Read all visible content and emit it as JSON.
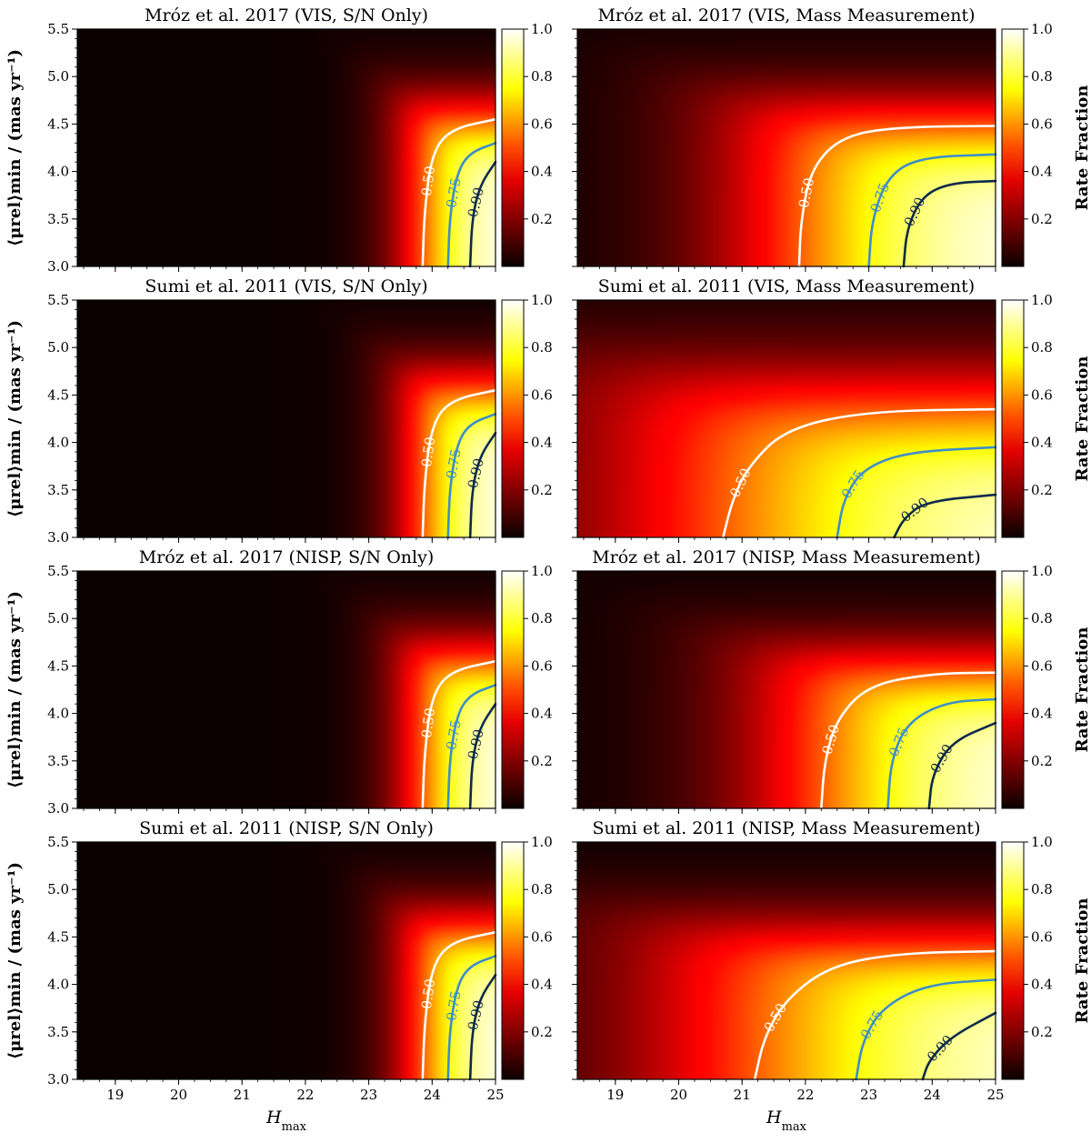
{
  "figure": {
    "xlabel_main": "H",
    "xlabel_sub": "max",
    "ylabel": "⟨μrel⟩min / (mas yr⁻¹)",
    "colorbar_label": "Rate Fraction",
    "colormap": "hot",
    "contour_colors": {
      "0.50": "#ffffff",
      "0.75": "#3d8ec9",
      "0.90": "#0d2a4d"
    }
  },
  "chart_data": [
    {
      "type": "heatmap",
      "title": "Mróz et al. 2017 (VIS, S/N Only)",
      "xlim": [
        18.4,
        25
      ],
      "ylim": [
        3.0,
        5.5
      ],
      "x_ticks": [
        "19",
        "20",
        "21",
        "22",
        "23",
        "24",
        "25"
      ],
      "y_ticks": [
        "3.0",
        "3.5",
        "4.0",
        "4.5",
        "5.0",
        "5.5"
      ],
      "colorbar_ticks": [
        "0.2",
        "0.4",
        "0.6",
        "0.8",
        "1.0"
      ],
      "contours": [
        {
          "level": 0.5,
          "label": "0.50",
          "points": [
            [
              23.85,
              3.0
            ],
            [
              23.88,
              3.6
            ],
            [
              24.0,
              4.2
            ],
            [
              24.3,
              4.45
            ],
            [
              25.0,
              4.55
            ]
          ]
        },
        {
          "level": 0.75,
          "label": "0.75",
          "points": [
            [
              24.25,
              3.0
            ],
            [
              24.28,
              3.55
            ],
            [
              24.4,
              4.0
            ],
            [
              24.6,
              4.2
            ],
            [
              25.0,
              4.3
            ]
          ]
        },
        {
          "level": 0.9,
          "label": "0.90",
          "points": [
            [
              24.6,
              3.0
            ],
            [
              24.63,
              3.5
            ],
            [
              24.75,
              3.85
            ],
            [
              25.0,
              4.1
            ]
          ]
        }
      ]
    },
    {
      "type": "heatmap",
      "title": "Mróz et al. 2017 (VIS, Mass Measurement)",
      "xlim": [
        18.4,
        25
      ],
      "ylim": [
        3.0,
        5.5
      ],
      "x_ticks": [
        "19",
        "20",
        "21",
        "22",
        "23",
        "24",
        "25"
      ],
      "y_ticks": [
        "3.0",
        "3.5",
        "4.0",
        "4.5",
        "5.0",
        "5.5"
      ],
      "colorbar_ticks": [
        "0.2",
        "0.4",
        "0.6",
        "0.8",
        "1.0"
      ],
      "contours": [
        {
          "level": 0.5,
          "label": "0.50",
          "points": [
            [
              21.9,
              3.0
            ],
            [
              21.93,
              3.5
            ],
            [
              22.1,
              4.05
            ],
            [
              22.6,
              4.38
            ],
            [
              23.5,
              4.47
            ],
            [
              25.0,
              4.48
            ]
          ]
        },
        {
          "level": 0.75,
          "label": "0.75",
          "points": [
            [
              23.0,
              3.0
            ],
            [
              23.05,
              3.5
            ],
            [
              23.3,
              3.95
            ],
            [
              23.8,
              4.15
            ],
            [
              25.0,
              4.18
            ]
          ]
        },
        {
          "level": 0.9,
          "label": "0.90",
          "points": [
            [
              23.55,
              3.0
            ],
            [
              23.6,
              3.4
            ],
            [
              23.85,
              3.75
            ],
            [
              24.3,
              3.88
            ],
            [
              25.0,
              3.9
            ]
          ]
        }
      ]
    },
    {
      "type": "heatmap",
      "title": "Sumi et al. 2011 (VIS, S/N Only)",
      "xlim": [
        18.4,
        25
      ],
      "ylim": [
        3.0,
        5.5
      ],
      "x_ticks": [
        "19",
        "20",
        "21",
        "22",
        "23",
        "24",
        "25"
      ],
      "y_ticks": [
        "3.0",
        "3.5",
        "4.0",
        "4.5",
        "5.0",
        "5.5"
      ],
      "colorbar_ticks": [
        "0.2",
        "0.4",
        "0.6",
        "0.8",
        "1.0"
      ],
      "contours": [
        {
          "level": 0.5,
          "label": "0.50",
          "points": [
            [
              23.85,
              3.0
            ],
            [
              23.88,
              3.6
            ],
            [
              24.0,
              4.2
            ],
            [
              24.3,
              4.45
            ],
            [
              25.0,
              4.55
            ]
          ]
        },
        {
          "level": 0.75,
          "label": "0.75",
          "points": [
            [
              24.25,
              3.0
            ],
            [
              24.28,
              3.55
            ],
            [
              24.4,
              4.0
            ],
            [
              24.6,
              4.2
            ],
            [
              25.0,
              4.3
            ]
          ]
        },
        {
          "level": 0.9,
          "label": "0.90",
          "points": [
            [
              24.6,
              3.0
            ],
            [
              24.63,
              3.5
            ],
            [
              24.75,
              3.85
            ],
            [
              25.0,
              4.1
            ]
          ]
        }
      ]
    },
    {
      "type": "heatmap",
      "title": "Sumi et al. 2011 (VIS, Mass Measurement)",
      "xlim": [
        18.4,
        25
      ],
      "ylim": [
        3.0,
        5.5
      ],
      "x_ticks": [
        "19",
        "20",
        "21",
        "22",
        "23",
        "24",
        "25"
      ],
      "y_ticks": [
        "3.0",
        "3.5",
        "4.0",
        "4.5",
        "5.0",
        "5.5"
      ],
      "colorbar_ticks": [
        "0.2",
        "0.4",
        "0.6",
        "0.8",
        "1.0"
      ],
      "contours": [
        {
          "level": 0.5,
          "label": "0.50",
          "points": [
            [
              20.7,
              3.0
            ],
            [
              20.85,
              3.4
            ],
            [
              21.1,
              3.75
            ],
            [
              21.7,
              4.15
            ],
            [
              23.0,
              4.33
            ],
            [
              25.0,
              4.35
            ]
          ]
        },
        {
          "level": 0.75,
          "label": "0.75",
          "points": [
            [
              22.5,
              3.0
            ],
            [
              22.6,
              3.4
            ],
            [
              22.9,
              3.72
            ],
            [
              23.6,
              3.9
            ],
            [
              25.0,
              3.95
            ]
          ]
        },
        {
          "level": 0.9,
          "label": "0.90",
          "points": [
            [
              23.4,
              3.0
            ],
            [
              23.55,
              3.2
            ],
            [
              23.9,
              3.38
            ],
            [
              25.0,
              3.45
            ]
          ]
        }
      ]
    },
    {
      "type": "heatmap",
      "title": "Mróz et al. 2017 (NISP, S/N Only)",
      "xlim": [
        18.4,
        25
      ],
      "ylim": [
        3.0,
        5.5
      ],
      "x_ticks": [
        "19",
        "20",
        "21",
        "22",
        "23",
        "24",
        "25"
      ],
      "y_ticks": [
        "3.0",
        "3.5",
        "4.0",
        "4.5",
        "5.0",
        "5.5"
      ],
      "colorbar_ticks": [
        "0.2",
        "0.4",
        "0.6",
        "0.8",
        "1.0"
      ],
      "contours": [
        {
          "level": 0.5,
          "label": "0.50",
          "points": [
            [
              23.85,
              3.0
            ],
            [
              23.88,
              3.6
            ],
            [
              24.0,
              4.2
            ],
            [
              24.3,
              4.45
            ],
            [
              25.0,
              4.55
            ]
          ]
        },
        {
          "level": 0.75,
          "label": "0.75",
          "points": [
            [
              24.25,
              3.0
            ],
            [
              24.28,
              3.55
            ],
            [
              24.4,
              4.0
            ],
            [
              24.6,
              4.2
            ],
            [
              25.0,
              4.3
            ]
          ]
        },
        {
          "level": 0.9,
          "label": "0.90",
          "points": [
            [
              24.6,
              3.0
            ],
            [
              24.63,
              3.5
            ],
            [
              24.75,
              3.85
            ],
            [
              25.0,
              4.1
            ]
          ]
        }
      ]
    },
    {
      "type": "heatmap",
      "title": "Mróz et al. 2017 (NISP, Mass Measurement)",
      "xlim": [
        18.4,
        25
      ],
      "ylim": [
        3.0,
        5.5
      ],
      "x_ticks": [
        "19",
        "20",
        "21",
        "22",
        "23",
        "24",
        "25"
      ],
      "y_ticks": [
        "3.0",
        "3.5",
        "4.0",
        "4.5",
        "5.0",
        "5.5"
      ],
      "colorbar_ticks": [
        "0.2",
        "0.4",
        "0.6",
        "0.8",
        "1.0"
      ],
      "contours": [
        {
          "level": 0.5,
          "label": "0.50",
          "points": [
            [
              22.25,
              3.0
            ],
            [
              22.3,
              3.5
            ],
            [
              22.5,
              3.95
            ],
            [
              23.0,
              4.3
            ],
            [
              24.0,
              4.42
            ],
            [
              25.0,
              4.43
            ]
          ]
        },
        {
          "level": 0.75,
          "label": "0.75",
          "points": [
            [
              23.3,
              3.0
            ],
            [
              23.35,
              3.5
            ],
            [
              23.6,
              3.9
            ],
            [
              24.2,
              4.12
            ],
            [
              25.0,
              4.15
            ]
          ]
        },
        {
          "level": 0.9,
          "label": "0.90",
          "points": [
            [
              23.95,
              3.0
            ],
            [
              24.0,
              3.35
            ],
            [
              24.3,
              3.7
            ],
            [
              25.0,
              3.9
            ]
          ]
        }
      ]
    },
    {
      "type": "heatmap",
      "title": "Sumi et al. 2011 (NISP, S/N Only)",
      "xlim": [
        18.4,
        25
      ],
      "ylim": [
        3.0,
        5.5
      ],
      "x_ticks": [
        "19",
        "20",
        "21",
        "22",
        "23",
        "24",
        "25"
      ],
      "y_ticks": [
        "3.0",
        "3.5",
        "4.0",
        "4.5",
        "5.0",
        "5.5"
      ],
      "colorbar_ticks": [
        "0.2",
        "0.4",
        "0.6",
        "0.8",
        "1.0"
      ],
      "contours": [
        {
          "level": 0.5,
          "label": "0.50",
          "points": [
            [
              23.85,
              3.0
            ],
            [
              23.88,
              3.6
            ],
            [
              24.0,
              4.2
            ],
            [
              24.3,
              4.45
            ],
            [
              25.0,
              4.55
            ]
          ]
        },
        {
          "level": 0.75,
          "label": "0.75",
          "points": [
            [
              24.25,
              3.0
            ],
            [
              24.28,
              3.55
            ],
            [
              24.4,
              4.0
            ],
            [
              24.6,
              4.2
            ],
            [
              25.0,
              4.3
            ]
          ]
        },
        {
          "level": 0.9,
          "label": "0.90",
          "points": [
            [
              24.6,
              3.0
            ],
            [
              24.63,
              3.5
            ],
            [
              24.75,
              3.85
            ],
            [
              25.0,
              4.1
            ]
          ]
        }
      ]
    },
    {
      "type": "heatmap",
      "title": "Sumi et al. 2011 (NISP, Mass Measurement)",
      "xlim": [
        18.4,
        25
      ],
      "ylim": [
        3.0,
        5.5
      ],
      "x_ticks": [
        "19",
        "20",
        "21",
        "22",
        "23",
        "24",
        "25"
      ],
      "y_ticks": [
        "3.0",
        "3.5",
        "4.0",
        "4.5",
        "5.0",
        "5.5"
      ],
      "colorbar_ticks": [
        "0.2",
        "0.4",
        "0.6",
        "0.8",
        "1.0"
      ],
      "contours": [
        {
          "level": 0.5,
          "label": "0.50",
          "points": [
            [
              21.2,
              3.0
            ],
            [
              21.35,
              3.45
            ],
            [
              21.7,
              3.85
            ],
            [
              22.4,
              4.2
            ],
            [
              23.5,
              4.33
            ],
            [
              25.0,
              4.35
            ]
          ]
        },
        {
          "level": 0.75,
          "label": "0.75",
          "points": [
            [
              22.8,
              3.0
            ],
            [
              22.9,
              3.4
            ],
            [
              23.2,
              3.75
            ],
            [
              23.9,
              4.0
            ],
            [
              25.0,
              4.05
            ]
          ]
        },
        {
          "level": 0.9,
          "label": "0.90",
          "points": [
            [
              23.85,
              3.0
            ],
            [
              23.95,
              3.2
            ],
            [
              24.3,
              3.45
            ],
            [
              25.0,
              3.7
            ]
          ]
        }
      ]
    }
  ]
}
